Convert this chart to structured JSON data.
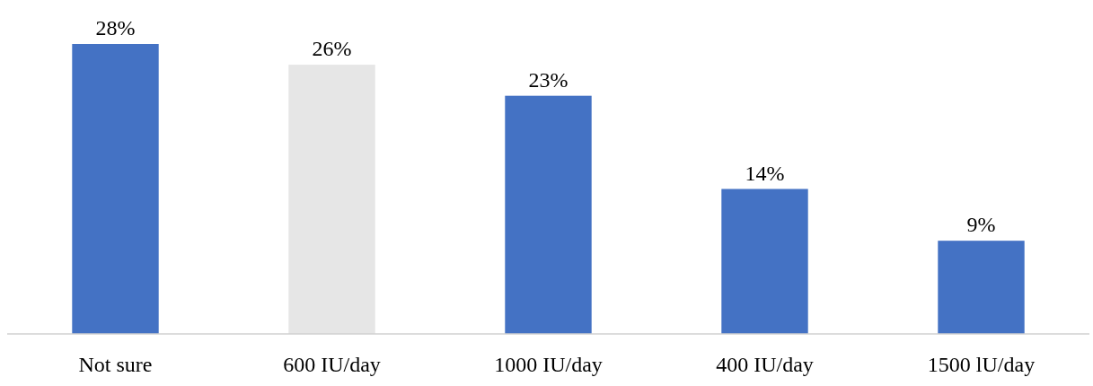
{
  "chart_data": {
    "type": "bar",
    "categories": [
      "Not sure",
      "600 IU/day",
      "1000 IU/day",
      "400 IU/day",
      "1500 lU/day"
    ],
    "values": [
      28,
      26,
      23,
      14,
      9
    ],
    "colors": [
      "#4472c4",
      "#e6e6e6",
      "#4472c4",
      "#4472c4",
      "#4472c4"
    ],
    "value_labels": [
      "28%",
      "26%",
      "23%",
      "14%",
      "9%"
    ]
  }
}
